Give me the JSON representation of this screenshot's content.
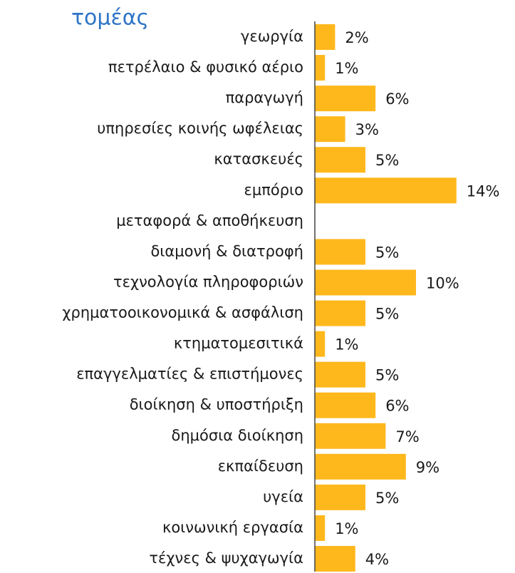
{
  "chart_data": {
    "type": "bar",
    "orientation": "horizontal",
    "title": "τομέας",
    "categories": [
      "γεωργία",
      "πετρέλαιο & φυσικό αέριο",
      "παραγωγή",
      "υπηρεσίες κοινής ωφέλειας",
      "κατασκευές",
      "εμπόριο",
      "μεταφορά & αποθήκευση",
      "διαμονή & διατροφή",
      "τεχνολογία πληροφοριών",
      "χρηματοοικονομικά & ασφάλιση",
      "κτηματομεσιτικά",
      "επαγγελματίες & επιστήμονες",
      "διοίκηση & υποστήριξη",
      "δημόσια διοίκηση",
      "εκπαίδευση",
      "υγεία",
      "κοινωνική εργασία",
      "τέχνες & ψυχαγωγία"
    ],
    "values": [
      2,
      1,
      6,
      3,
      5,
      14,
      null,
      5,
      10,
      5,
      1,
      5,
      6,
      7,
      9,
      5,
      1,
      4
    ],
    "value_labels": [
      "2%",
      "1%",
      "6%",
      "3%",
      "5%",
      "14%",
      null,
      "5%",
      "10%",
      "5%",
      "1%",
      "5%",
      "6%",
      "7%",
      "9%",
      "5%",
      "1%",
      "4%"
    ],
    "color": "#ffb81c"
  }
}
